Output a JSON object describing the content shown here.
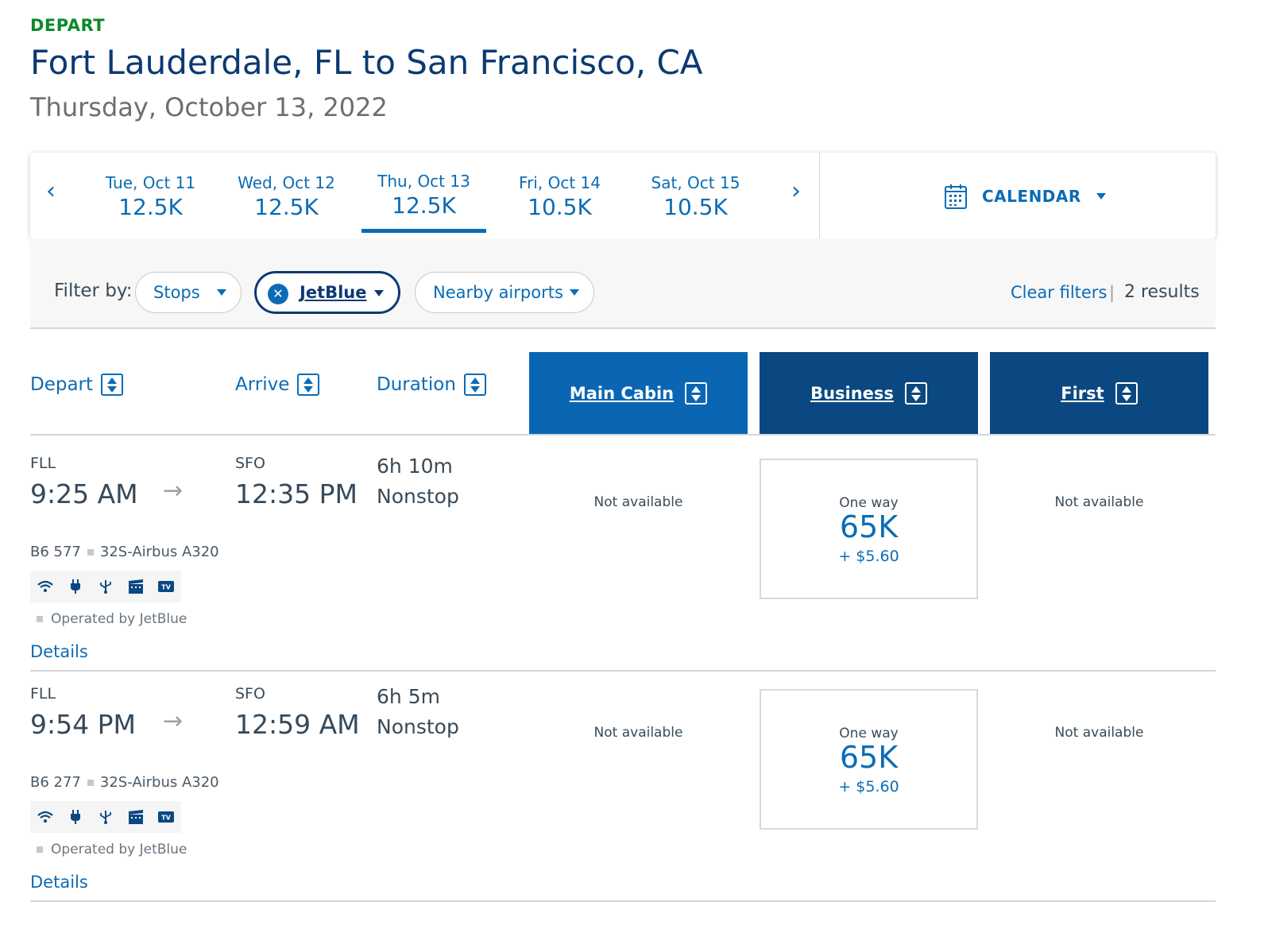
{
  "header": {
    "depart_label": "DEPART",
    "route": "Fort Lauderdale, FL to San Francisco, CA",
    "date": "Thursday, October 13, 2022"
  },
  "datebar": {
    "prev_icon": "chevron-left-icon",
    "next_icon": "chevron-right-icon",
    "dates": [
      {
        "day": "Tue, Oct 11",
        "price": "12.5K"
      },
      {
        "day": "Wed, Oct 12",
        "price": "12.5K"
      },
      {
        "day": "Thu, Oct 13",
        "price": "12.5K",
        "active": true
      },
      {
        "day": "Fri, Oct 14",
        "price": "10.5K"
      },
      {
        "day": "Sat, Oct 15",
        "price": "10.5K"
      }
    ],
    "calendar_label": "CALENDAR",
    "calendar_icon": "calendar-icon"
  },
  "filters": {
    "label": "Filter by:",
    "stops": "Stops",
    "airline": "JetBlue",
    "nearby": "Nearby airports",
    "clear": "Clear filters",
    "separator": "|",
    "results": "2 results"
  },
  "columns": {
    "depart": "Depart",
    "arrive": "Arrive",
    "duration": "Duration",
    "main_cabin": "Main Cabin",
    "business": "Business",
    "first": "First"
  },
  "colors": {
    "accent": "#0b6cb5",
    "navy": "#0b3a73",
    "main_cabin_header": "#0a66b3",
    "premium_header": "#0b4881",
    "depart_green": "#0a8a2a"
  },
  "flights": [
    {
      "from": "FLL",
      "depart_time": "9:25 AM",
      "to": "SFO",
      "arrive_time": "12:35 PM",
      "duration": "6h 10m",
      "stops": "Nonstop",
      "flight_number": "B6 577",
      "aircraft": "32S-Airbus A320",
      "amenities": [
        "wifi-icon",
        "power-plug-icon",
        "usb-icon",
        "movie-icon",
        "tv-icon"
      ],
      "operated_by": "Operated by JetBlue",
      "details": "Details",
      "main_cabin": "Not available",
      "business": {
        "label": "One way",
        "miles": "65K",
        "taxes": "+ $5.60"
      },
      "first": "Not available"
    },
    {
      "from": "FLL",
      "depart_time": "9:54 PM",
      "to": "SFO",
      "arrive_time": "12:59 AM",
      "duration": "6h 5m",
      "stops": "Nonstop",
      "flight_number": "B6 277",
      "aircraft": "32S-Airbus A320",
      "amenities": [
        "wifi-icon",
        "power-plug-icon",
        "usb-icon",
        "movie-icon",
        "tv-icon"
      ],
      "operated_by": "Operated by JetBlue",
      "details": "Details",
      "main_cabin": "Not available",
      "business": {
        "label": "One way",
        "miles": "65K",
        "taxes": "+ $5.60"
      },
      "first": "Not available"
    }
  ]
}
